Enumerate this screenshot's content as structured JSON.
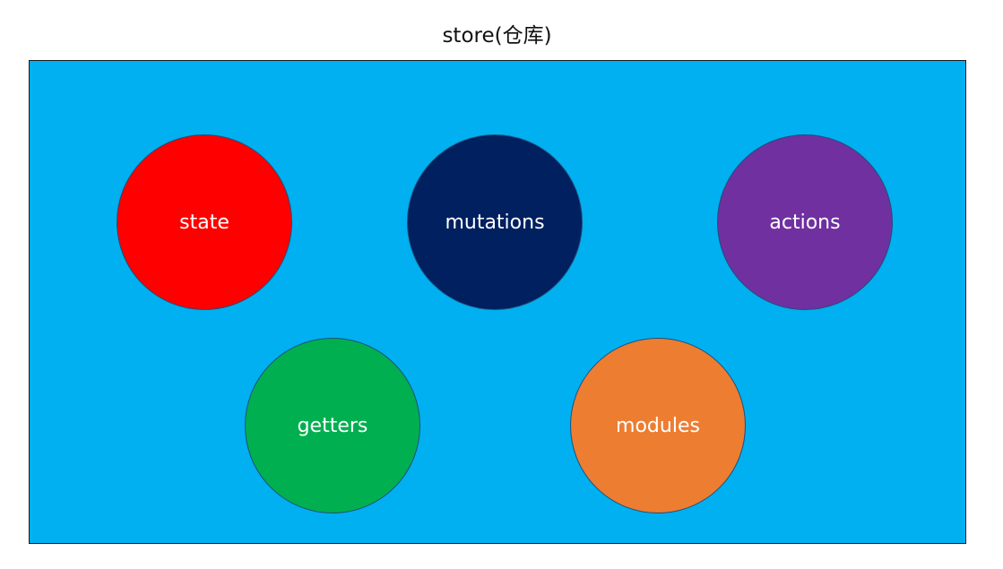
{
  "title": "store(仓库)",
  "store_box": {
    "color": "#00B0F0"
  },
  "nodes": [
    {
      "label": "state",
      "color": "#FF0000"
    },
    {
      "label": "mutations",
      "color": "#002060"
    },
    {
      "label": "actions",
      "color": "#7030A0"
    },
    {
      "label": "getters",
      "color": "#00B050"
    },
    {
      "label": "modules",
      "color": "#ED7D31"
    }
  ]
}
